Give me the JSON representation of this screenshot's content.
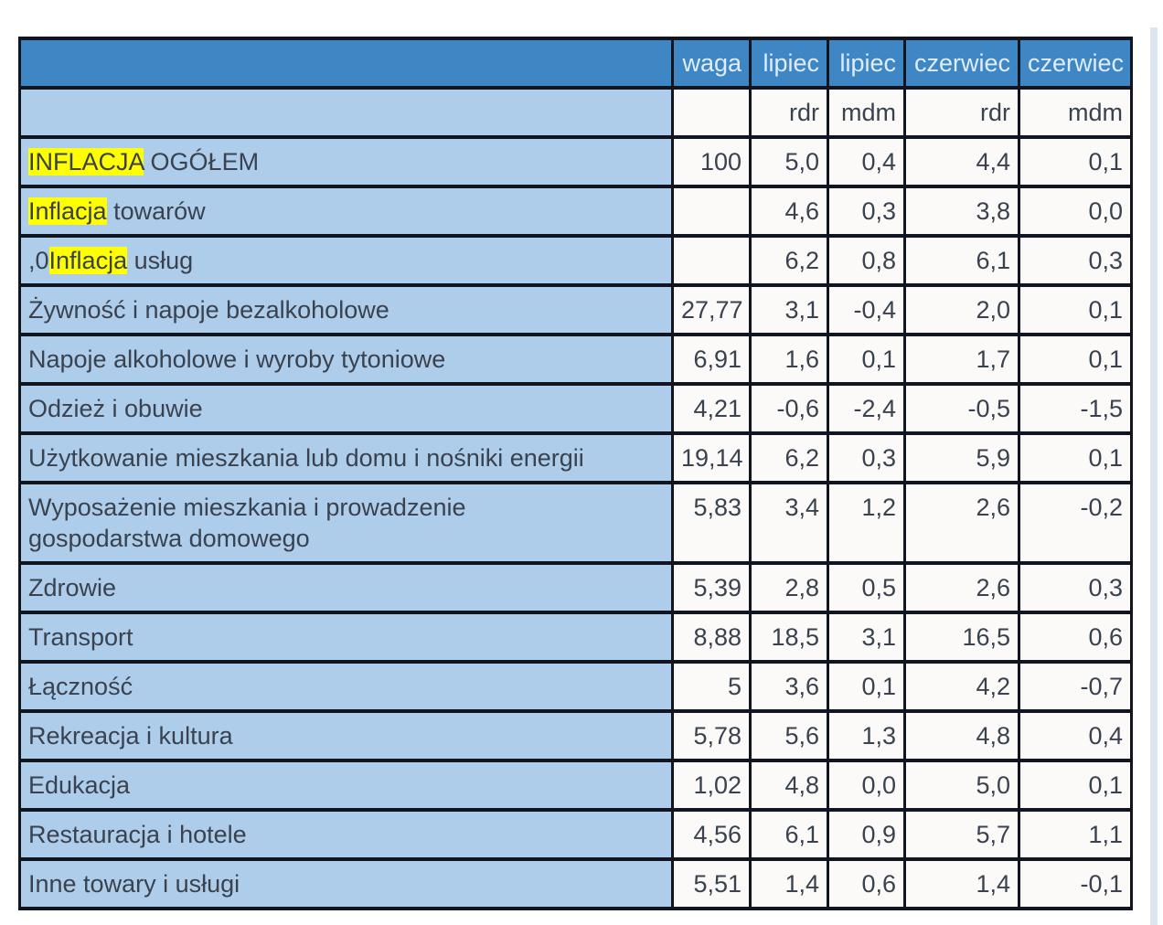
{
  "ui": {
    "colors": {
      "header_bg": "#3f86c5",
      "header_text": "#dfecf9",
      "label_cell_bg": "#aecdea",
      "value_cell_bg": "#fbfaf8",
      "border": "#10151f",
      "body_text": "#39424e",
      "find_highlight": "#ffff00",
      "scrollbar_track": "#dce6f1",
      "page_bg": "#ffffff"
    },
    "highlighted_term": "inflacja"
  },
  "chart_data": {
    "type": "table",
    "header_row": [
      "",
      "waga",
      "lipiec",
      "lipiec",
      "czerwiec",
      "czerwiec"
    ],
    "subheader_row": [
      "",
      "",
      "rdr",
      "mdm",
      "rdr",
      "mdm"
    ],
    "rows": [
      {
        "label": "INFLACJA OGÓŁEM",
        "label_parts": [
          {
            "text": "INFLACJA",
            "highlighted": true
          },
          {
            "text": " OGÓŁEM",
            "highlighted": false
          }
        ],
        "values": [
          "100",
          "5,0",
          "0,4",
          "4,4",
          "0,1"
        ]
      },
      {
        "label": "Inflacja towarów",
        "label_parts": [
          {
            "text": "Inflacja",
            "highlighted": true
          },
          {
            "text": " towarów",
            "highlighted": false
          }
        ],
        "values": [
          "",
          "4,6",
          "0,3",
          "3,8",
          "0,0"
        ]
      },
      {
        "label": ",0Inflacja usług",
        "label_parts": [
          {
            "text": ",0",
            "highlighted": false
          },
          {
            "text": "Inflacja",
            "highlighted": true
          },
          {
            "text": " usług",
            "highlighted": false
          }
        ],
        "values": [
          "",
          "6,2",
          "0,8",
          "6,1",
          "0,3"
        ]
      },
      {
        "label": "Żywność i napoje bezalkoholowe",
        "values": [
          "27,77",
          "3,1",
          "-0,4",
          "2,0",
          "0,1"
        ]
      },
      {
        "label": "Napoje alkoholowe i wyroby tytoniowe",
        "values": [
          "6,91",
          "1,6",
          "0,1",
          "1,7",
          "0,1"
        ]
      },
      {
        "label": "Odzież i obuwie",
        "values": [
          "4,21",
          "-0,6",
          "-2,4",
          "-0,5",
          "-1,5"
        ]
      },
      {
        "label": "Użytkowanie mieszkania lub domu i nośniki energii",
        "values": [
          "19,14",
          "6,2",
          "0,3",
          "5,9",
          "0,1"
        ]
      },
      {
        "label": "Wyposażenie mieszkania i prowadzenie\ngospodarstwa domowego",
        "values": [
          "5,83",
          "3,4",
          "1,2",
          "2,6",
          "-0,2"
        ]
      },
      {
        "label": "Zdrowie",
        "values": [
          "5,39",
          "2,8",
          "0,5",
          "2,6",
          "0,3"
        ]
      },
      {
        "label": "Transport",
        "values": [
          "8,88",
          "18,5",
          "3,1",
          "16,5",
          "0,6"
        ]
      },
      {
        "label": "Łączność",
        "values": [
          "5",
          "3,6",
          "0,1",
          "4,2",
          "-0,7"
        ]
      },
      {
        "label": "Rekreacja i kultura",
        "values": [
          "5,78",
          "5,6",
          "1,3",
          "4,8",
          "0,4"
        ]
      },
      {
        "label": "Edukacja",
        "values": [
          "1,02",
          "4,8",
          "0,0",
          "5,0",
          "0,1"
        ]
      },
      {
        "label": "Restauracja i hotele",
        "values": [
          "4,56",
          "6,1",
          "0,9",
          "5,7",
          "1,1"
        ]
      },
      {
        "label": "Inne towary i usługi",
        "values": [
          "5,51",
          "1,4",
          "0,6",
          "1,4",
          "-0,1"
        ]
      }
    ]
  }
}
